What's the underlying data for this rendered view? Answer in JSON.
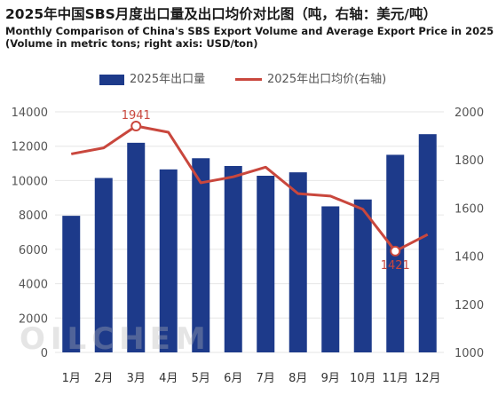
{
  "chart_data": {
    "type": "bar+line",
    "title": "2025年中国SBS月度出口量及出口均价对比图（吨，右轴：美元/吨）",
    "subtitle_en_1": "Monthly Comparison of China's SBS Export Volume and Average Export Price in 2025",
    "subtitle_en_2": "(Volume in metric tons; right axis: USD/ton)",
    "categories": [
      "1月",
      "2月",
      "3月",
      "4月",
      "5月",
      "6月",
      "7月",
      "8月",
      "9月",
      "10月",
      "11月",
      "12月"
    ],
    "series": [
      {
        "name": "2025年出口量",
        "type": "bar",
        "axis": "left",
        "values": [
          7950,
          10150,
          12200,
          10650,
          11300,
          10850,
          10280,
          10480,
          8500,
          8900,
          11500,
          12700
        ]
      },
      {
        "name": "2025年出口均价(右轴)",
        "type": "line",
        "axis": "right",
        "values": [
          1825,
          1850,
          1941,
          1915,
          1705,
          1730,
          1770,
          1660,
          1650,
          1595,
          1421,
          1490
        ]
      }
    ],
    "data_labels": [
      {
        "series": 1,
        "index": 2,
        "text": "1941"
      },
      {
        "series": 1,
        "index": 10,
        "text": "1421"
      }
    ],
    "yleft": {
      "min": 0,
      "max": 14000,
      "ticks": [
        0,
        2000,
        4000,
        6000,
        8000,
        10000,
        12000,
        14000
      ]
    },
    "yright": {
      "min": 1000,
      "max": 2000,
      "ticks": [
        1000,
        1200,
        1400,
        1600,
        1800,
        2000
      ]
    },
    "grid": true,
    "legend_position": "top-center",
    "colors": {
      "bar": "#1d3a8a",
      "line": "#c9473d",
      "grid": "#e6e6e6"
    }
  },
  "watermark": "OILCHEM"
}
